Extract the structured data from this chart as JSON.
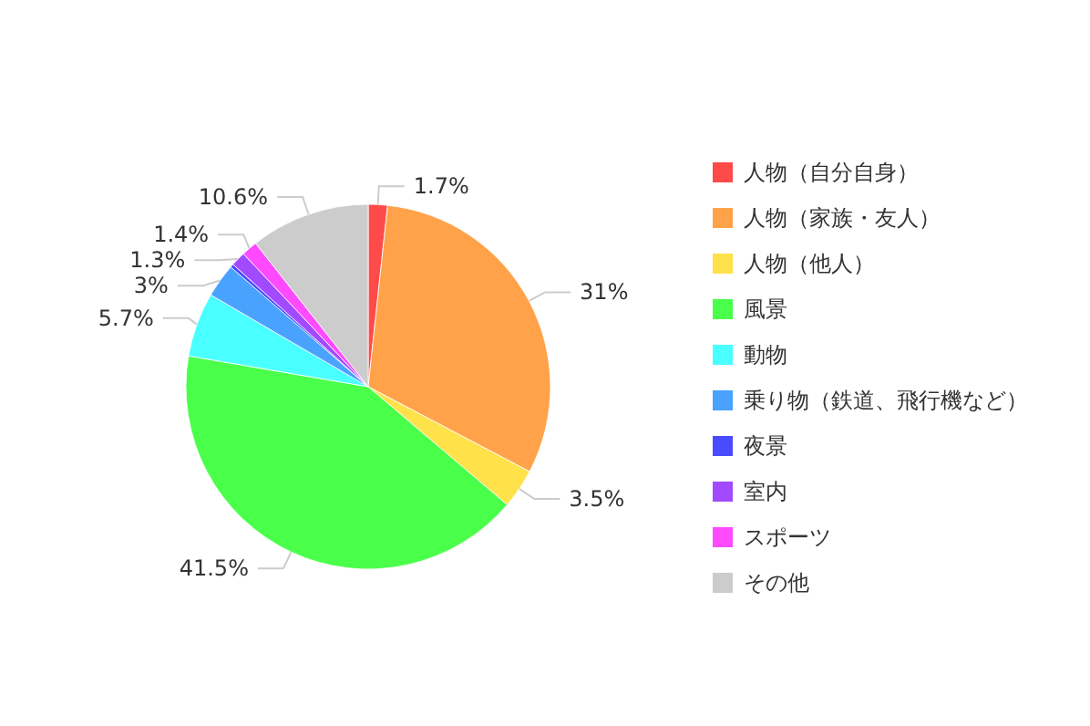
{
  "chart_data": {
    "type": "pie",
    "categories": [
      "人物（自分自身）",
      "人物（家族・友人）",
      "人物（他人）",
      "風景",
      "動物",
      "乗り物（鉄道、飛行機など）",
      "夜景",
      "室内",
      "スポーツ",
      "その他"
    ],
    "values": [
      1.7,
      31,
      3.5,
      41.5,
      5.7,
      3,
      0.3,
      1.3,
      1.4,
      10.6
    ],
    "value_labels": [
      "1.7%",
      "31%",
      "3.5%",
      "41.5%",
      "5.7%",
      "3%",
      null,
      "1.3%",
      "1.4%",
      "10.6%"
    ],
    "colors": [
      "#ff4a4a",
      "#ffa24a",
      "#ffe14a",
      "#4aff4a",
      "#4affff",
      "#4aa2ff",
      "#4a4aff",
      "#a24aff",
      "#ff4aff",
      "#cccccc"
    ],
    "legend": "right"
  }
}
